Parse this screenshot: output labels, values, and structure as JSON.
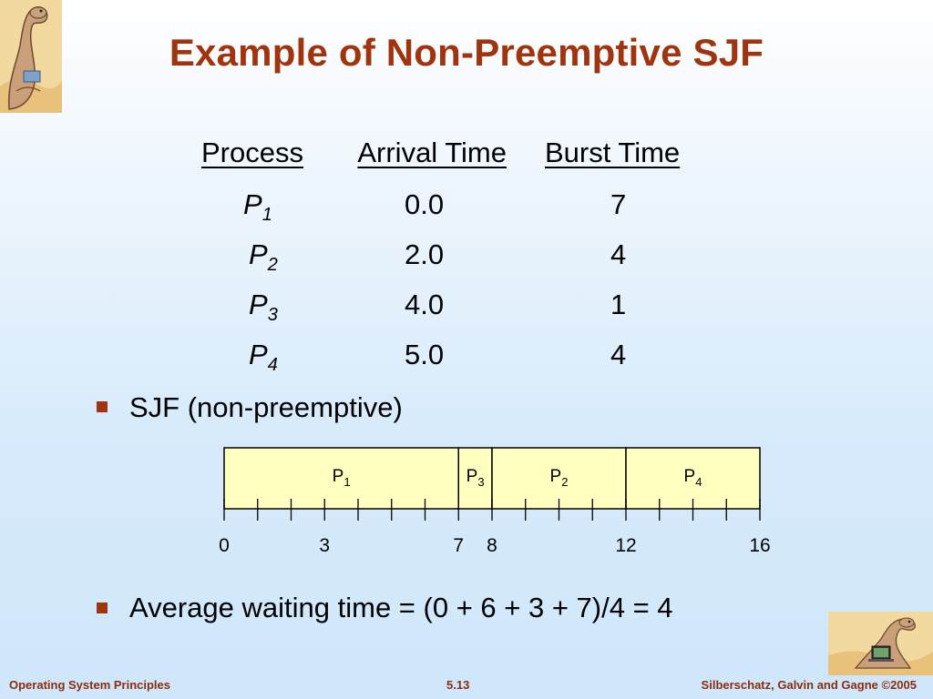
{
  "slide": {
    "title": "Example of Non-Preemptive SJF"
  },
  "table": {
    "headers": [
      "Process",
      "Arrival Time",
      "Burst Time"
    ],
    "rows": [
      {
        "process": "P",
        "sub": "1",
        "arrival": "0.0",
        "burst": "7"
      },
      {
        "process": "P",
        "sub": "2",
        "arrival": "2.0",
        "burst": "4"
      },
      {
        "process": "P",
        "sub": "3",
        "arrival": "4.0",
        "burst": "1"
      },
      {
        "process": "P",
        "sub": "4",
        "arrival": "5.0",
        "burst": "4"
      }
    ]
  },
  "bullets": [
    "SJF (non-preemptive)",
    "Average waiting time = (0 + 6 + 3 + 7)/4  = 4"
  ],
  "chart_data": {
    "type": "gantt",
    "title": "",
    "segments": [
      {
        "label": "P",
        "sub": "1",
        "start": 0,
        "end": 7
      },
      {
        "label": "P",
        "sub": "3",
        "start": 7,
        "end": 8
      },
      {
        "label": "P",
        "sub": "2",
        "start": 8,
        "end": 12
      },
      {
        "label": "P",
        "sub": "4",
        "start": 12,
        "end": 16
      }
    ],
    "tick_labels": [
      "0",
      "3",
      "7",
      "8",
      "12",
      "16"
    ],
    "tick_values": [
      0,
      3,
      7,
      8,
      12,
      16
    ],
    "xlim": [
      0,
      16
    ],
    "minor_ticks_per_unit": 1,
    "bar_color": "#ffffc0",
    "border_color": "#000000"
  },
  "footer": {
    "left": "Operating System Principles",
    "center": "5.13",
    "right": "Silberschatz, Galvin and Gagne ©2005"
  },
  "theme": {
    "title_color": "#a0340f",
    "bullet_color": "#a0340f",
    "footer_color": "#8a2d0c"
  },
  "images": {
    "top_left": "dinosaur-illustration",
    "bottom_right": "dinosaur-with-laptop-illustration"
  }
}
